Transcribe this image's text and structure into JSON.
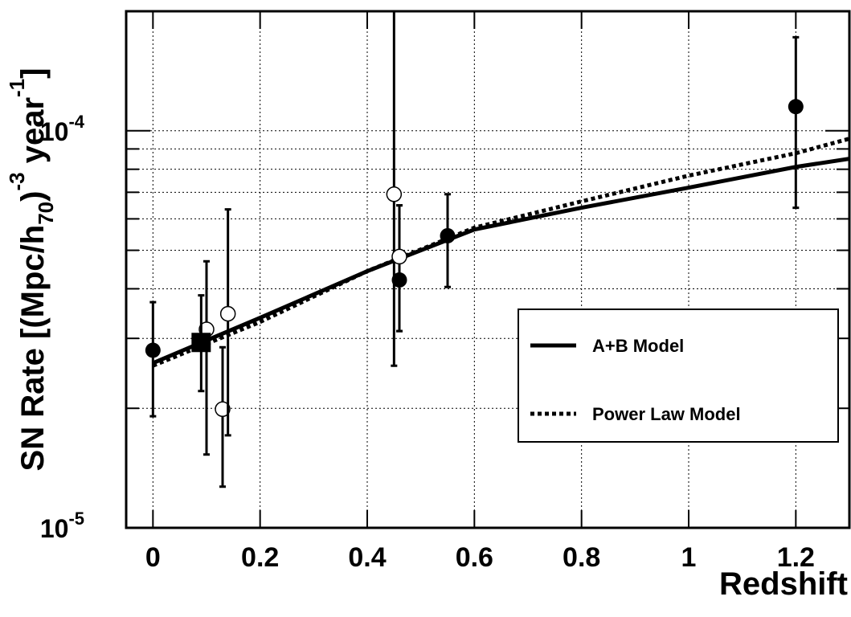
{
  "chart_data": {
    "type": "scatter",
    "x_label": "Redshift",
    "y_label": [
      {
        "text": "SN Rate [(Mpc/h"
      },
      {
        "text": "70",
        "shift": "sub"
      },
      {
        "text": ")"
      },
      {
        "text": "-3",
        "shift": "super"
      },
      {
        "text": " year"
      },
      {
        "text": "-1",
        "shift": "super"
      },
      {
        "text": "]"
      }
    ],
    "xlim": [
      -0.05,
      1.3
    ],
    "ylim": [
      1e-05,
      0.0002
    ],
    "yscale": "log",
    "grid": true,
    "xticks": [
      0,
      0.2,
      0.4,
      0.6,
      0.8,
      1,
      1.2
    ],
    "yticks": [
      {
        "value": 1e-05,
        "label": "10",
        "exponent": "-5"
      },
      {
        "value": 0.0001,
        "label": "10",
        "exponent": "-4"
      }
    ],
    "yminorticks": [
      2e-05,
      3e-05,
      4e-05,
      5e-05,
      6e-05,
      7e-05,
      8e-05,
      9e-05
    ],
    "series": [
      {
        "marker": "filled-circle",
        "color": "#000000",
        "x": [
          0,
          0.46,
          0.55,
          1.2
        ],
        "values": [
          2.8e-05,
          4.21e-05,
          5.44e-05,
          0.000115
        ],
        "errors_minus": [
          8.9e-06,
          1.08e-05,
          1.4e-05,
          5.1e-05
        ],
        "errors_plus": [
          9e-06,
          2.28e-05,
          1.48e-05,
          5.7e-05
        ]
      },
      {
        "marker": "open-circle",
        "color": "#000000",
        "x": [
          0.1,
          0.13,
          0.14,
          0.45,
          0.46
        ],
        "values": [
          3.16e-05,
          1.99e-05,
          3.46e-05,
          6.92e-05,
          4.82e-05
        ],
        "errors_minus": [
          1.63e-05,
          7.2e-06,
          1.75e-05,
          4.36e-05,
          1.69e-05
        ],
        "errors_plus": [
          1.53e-05,
          8.6e-06,
          2.88e-05,
          0.00015,
          1.67e-05
        ]
      },
      {
        "marker": "filled-square",
        "color": "#000000",
        "x": [
          0.09
        ],
        "values": [
          2.93e-05
        ],
        "errors_minus": [
          7.2e-06
        ],
        "errors_plus": [
          9.2e-06
        ]
      }
    ],
    "models": [
      {
        "name": "A+B Model",
        "style": "solid",
        "color": "#000000",
        "x": [
          0,
          0.2,
          0.4,
          0.6,
          0.8,
          1,
          1.2,
          1.3
        ],
        "values": [
          2.6e-05,
          3.38e-05,
          4.43e-05,
          5.64e-05,
          6.4e-05,
          7.19e-05,
          8.11e-05,
          8.5e-05
        ]
      },
      {
        "name": "Power Law Model",
        "style": "dotted",
        "color": "#000000",
        "x": [
          0,
          0.2,
          0.4,
          0.6,
          0.8,
          1,
          1.2,
          1.3
        ],
        "values": [
          2.56e-05,
          3.3e-05,
          4.43e-05,
          5.7e-05,
          6.64e-05,
          7.71e-05,
          8.78e-05,
          9.55e-05
        ]
      }
    ],
    "legend": "bottom-right"
  }
}
